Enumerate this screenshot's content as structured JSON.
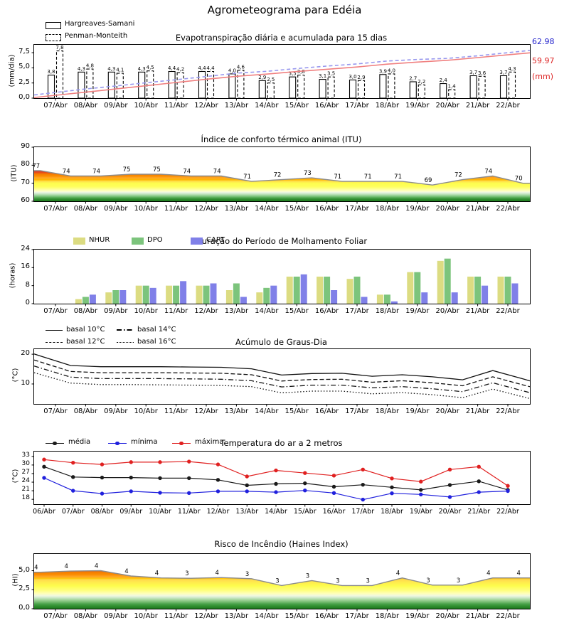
{
  "title": "Agrometeograma para Edéia",
  "x_tick_labels": [
    "07/Abr",
    "08/Abr",
    "09/Abr",
    "10/Abr",
    "11/Abr",
    "12/Abr",
    "13/Abr",
    "14/Abr",
    "15/Abr",
    "16/Abr",
    "17/Abr",
    "18/Abr",
    "19/Abr",
    "20/Abr",
    "21/Abr",
    "22/Abr"
  ],
  "x_tick_labels_temp": [
    "06/Abr",
    "07/Abr",
    "08/Abr",
    "09/Abr",
    "10/Abr",
    "11/Abr",
    "12/Abr",
    "13/Abr",
    "14/Abr",
    "15/Abr",
    "16/Abr",
    "17/Abr",
    "18/Abr",
    "19/Abr",
    "20/Abr",
    "21/Abr",
    "22/Abr"
  ],
  "chart_data": {
    "evapo": {
      "type": "bar+line",
      "title": "Evapotranspiração diária e acumulada para 15 dias",
      "ylabel": "(mm/dia)",
      "ylim": [
        0,
        8.8
      ],
      "yticks": [
        {
          "v": 0,
          "label": "0,0"
        },
        {
          "v": 2.5,
          "label": "2,5"
        },
        {
          "v": 5,
          "label": "5,0"
        },
        {
          "v": 7.5,
          "label": "7,5"
        }
      ],
      "legend": [
        {
          "label": "Hargreaves-Samani",
          "style": "solid"
        },
        {
          "label": "Penman-Monteith",
          "style": "dashed"
        }
      ],
      "hs_values": [
        3.8,
        4.3,
        4.3,
        4.3,
        4.4,
        4.4,
        4.0,
        2.9,
        3.5,
        3.1,
        3.0,
        3.9,
        2.7,
        2.4,
        3.7,
        3.7
      ],
      "pm_values": [
        7.8,
        4.8,
        4.1,
        4.5,
        4.2,
        4.4,
        4.6,
        2.5,
        3.8,
        3.5,
        2.9,
        4.0,
        2.2,
        1.4,
        3.6,
        4.3
      ],
      "hs_acc": [
        3.9,
        8.32,
        12.73,
        17.15,
        21.67,
        26.19,
        30.29,
        33.27,
        36.87,
        40.05,
        43.13,
        47.13,
        49.91,
        52.37,
        56.17,
        59.97
      ],
      "pm_acc": [
        7.85,
        12.68,
        16.8,
        21.33,
        25.55,
        29.98,
        34.61,
        37.12,
        40.94,
        44.47,
        47.38,
        51.41,
        53.62,
        55.03,
        58.65,
        62.98
      ],
      "right_axis": {
        "pm_total": "62.98",
        "hs_total": "59.97",
        "unit": "(mm)",
        "pm_color": "#2222cc",
        "hs_color": "#dd2222"
      },
      "acc_line_colors": {
        "hs": "#f08080",
        "pm": "#9898ee"
      },
      "acc_plot_scale": {
        "max_value": 62.98,
        "maps_to": 7.5
      }
    },
    "itu": {
      "type": "area",
      "title": "Índice de conforto térmico animal (ITU)",
      "ylabel": "(ITU)",
      "ylim": [
        60,
        90
      ],
      "yticks": [
        {
          "v": 60,
          "label": "60"
        },
        {
          "v": 70,
          "label": "70"
        },
        {
          "v": 80,
          "label": "80"
        },
        {
          "v": 90,
          "label": "90"
        }
      ],
      "values": [
        77,
        74,
        74,
        75,
        75,
        74,
        74,
        71,
        72,
        73,
        71,
        71,
        71,
        69,
        72,
        74,
        70
      ],
      "curve_color": "#8c8c8c",
      "gradient": [
        [
          0,
          "#7a0000"
        ],
        [
          0.33,
          "#9a0f0f"
        ],
        [
          0.4,
          "#b71c1c"
        ],
        [
          0.433,
          "#d32f2f"
        ],
        [
          0.467,
          "#e64a19"
        ],
        [
          0.5,
          "#f57c00"
        ],
        [
          0.533,
          "#fb8c00"
        ],
        [
          0.567,
          "#ffa726"
        ],
        [
          0.6,
          "#ffb300"
        ],
        [
          0.633,
          "#ffe24d"
        ],
        [
          0.667,
          "#fdfd4d"
        ],
        [
          0.733,
          "#ffff5e"
        ],
        [
          0.783,
          "#ffffa0"
        ],
        [
          0.817,
          "#ffffd0"
        ],
        [
          0.833,
          "#eef6e2"
        ],
        [
          0.857,
          "#d2ead0"
        ],
        [
          0.883,
          "#aadaa6"
        ],
        [
          0.91,
          "#7cc47c"
        ],
        [
          0.94,
          "#4aa34a"
        ],
        [
          0.967,
          "#2d8b2d"
        ],
        [
          1,
          "#1e7a1e"
        ]
      ]
    },
    "molhamento": {
      "type": "bar",
      "title": "Duração do Período de Molhamento Foliar",
      "ylabel": "(horas)",
      "ylim": [
        0,
        24
      ],
      "yticks": [
        {
          "v": 0,
          "label": "0"
        },
        {
          "v": 8,
          "label": "8"
        },
        {
          "v": 16,
          "label": "16"
        },
        {
          "v": 24,
          "label": "24"
        }
      ],
      "series": [
        {
          "name": "NHUR",
          "color": "#dcdc82",
          "values": [
            0,
            2,
            5,
            8,
            8,
            8,
            6,
            5,
            12,
            12,
            11,
            4,
            14,
            19,
            12,
            12
          ]
        },
        {
          "name": "DPO",
          "color": "#7cc47c",
          "values": [
            0,
            3,
            6,
            8,
            8,
            8,
            9,
            7,
            12,
            12,
            12,
            4,
            14,
            20,
            12,
            12
          ]
        },
        {
          "name": "CART",
          "color": "#8080e8",
          "values": [
            0,
            4,
            6,
            7,
            10,
            9,
            3,
            8,
            13,
            6,
            3,
            1,
            5,
            5,
            8,
            9
          ]
        }
      ]
    },
    "graus": {
      "type": "line",
      "title": "Acúmulo de Graus-Dia",
      "ylabel": "(°C)",
      "ylim": [
        3.3,
        21.7
      ],
      "yticks": [
        {
          "v": 10,
          "label": "10"
        },
        {
          "v": 20,
          "label": "20"
        }
      ],
      "series": [
        {
          "name": "basal 10°C",
          "dash": "solid",
          "values": [
            19.4,
            16.2,
            15.8,
            15.8,
            15.8,
            15.7,
            15.6,
            15.1,
            13.0,
            13.5,
            13.6,
            12.6,
            13.1,
            12.4,
            11.4,
            14.5,
            11.7
          ]
        },
        {
          "name": "basal 12°C",
          "dash": "dashed",
          "values": [
            17.4,
            14.2,
            13.8,
            13.8,
            13.8,
            13.7,
            13.6,
            13.1,
            11.0,
            11.5,
            11.6,
            10.6,
            11.1,
            10.4,
            9.4,
            12.4,
            9.7
          ]
        },
        {
          "name": "basal 14°C",
          "dash": "dashdot",
          "values": [
            15.4,
            12.3,
            11.8,
            11.8,
            11.8,
            11.7,
            11.6,
            11.1,
            9.0,
            9.6,
            9.6,
            8.7,
            9.1,
            8.4,
            7.4,
            10.4,
            7.7
          ]
        },
        {
          "name": "basal 16°C",
          "dash": "dotted",
          "values": [
            13.2,
            10.3,
            9.8,
            9.8,
            9.7,
            9.6,
            9.5,
            9.1,
            7.0,
            7.6,
            7.6,
            6.7,
            7.1,
            6.4,
            5.4,
            8.3,
            5.7
          ]
        }
      ],
      "line_color": "#111111"
    },
    "temp": {
      "type": "line",
      "title": "Temperatura do ar a 2 metros",
      "ylabel": "(°C)",
      "ylim": [
        16.3,
        34.7
      ],
      "yticks": [
        {
          "v": 18,
          "label": "18"
        },
        {
          "v": 21,
          "label": "21"
        },
        {
          "v": 24,
          "label": "24"
        },
        {
          "v": 27,
          "label": "27"
        },
        {
          "v": 30,
          "label": "30"
        },
        {
          "v": 33,
          "label": "33"
        }
      ],
      "series": [
        {
          "name": "média",
          "color": "#1a1a1a",
          "values": [
            29.4,
            25.8,
            25.6,
            25.6,
            25.4,
            25.4,
            24.8,
            22.9,
            23.4,
            23.6,
            22.4,
            23.1,
            22.2,
            21.3,
            23.0,
            24.3,
            21.3
          ]
        },
        {
          "name": "mínima",
          "color": "#2020dd",
          "values": [
            25.5,
            21.0,
            20.0,
            20.8,
            20.3,
            20.2,
            20.8,
            20.8,
            20.5,
            21.1,
            20.2,
            17.9,
            20.1,
            19.7,
            18.8,
            20.5,
            20.9
          ]
        },
        {
          "name": "máxima",
          "color": "#e02020",
          "values": [
            31.9,
            30.8,
            30.2,
            31.0,
            31.0,
            31.2,
            30.2,
            26.0,
            28.1,
            27.2,
            26.3,
            28.4,
            25.3,
            24.2,
            28.4,
            29.4,
            22.7
          ]
        }
      ]
    },
    "haines": {
      "type": "area",
      "title": "Risco de Incêndio (Haines Index)",
      "ylabel": "(HI)",
      "ylim": [
        0,
        7.2
      ],
      "yticks": [
        {
          "v": 0,
          "label": "0,0"
        },
        {
          "v": 2.5,
          "label": "2,5"
        },
        {
          "v": 5,
          "label": "5,0"
        }
      ],
      "point_labels": [
        "4",
        "4",
        "4",
        "4",
        "4",
        "3",
        "4",
        "3",
        "3",
        "3",
        "3",
        "3",
        "4",
        "3",
        "3",
        "4",
        "4"
      ],
      "curve": [
        4.8,
        4.95,
        5.0,
        4.3,
        4.05,
        4.0,
        4.1,
        3.95,
        3.05,
        3.7,
        3.05,
        3.05,
        4.05,
        3.1,
        3.1,
        4.05,
        4.05
      ],
      "curve_color": "#8c8c8c",
      "gradient": [
        [
          0,
          "#7a0000"
        ],
        [
          0.1,
          "#8b0000"
        ],
        [
          0.2,
          "#a31515"
        ],
        [
          0.27,
          "#cc3311"
        ],
        [
          0.306,
          "#e65100"
        ],
        [
          0.33,
          "#f57c00"
        ],
        [
          0.375,
          "#fb8c00"
        ],
        [
          0.417,
          "#ffa726"
        ],
        [
          0.444,
          "#ffc107"
        ],
        [
          0.47,
          "#ffdb4d"
        ],
        [
          0.528,
          "#ffee4d"
        ],
        [
          0.583,
          "#fdfd4d"
        ],
        [
          0.667,
          "#ffff80"
        ],
        [
          0.722,
          "#ffffb8"
        ],
        [
          0.764,
          "#f0f8e0"
        ],
        [
          0.792,
          "#d4ecd0"
        ],
        [
          0.833,
          "#a8d8a0"
        ],
        [
          0.875,
          "#78bd74"
        ],
        [
          0.917,
          "#46a046"
        ],
        [
          0.958,
          "#2d8b2d"
        ],
        [
          1,
          "#1e7a1e"
        ]
      ]
    }
  }
}
